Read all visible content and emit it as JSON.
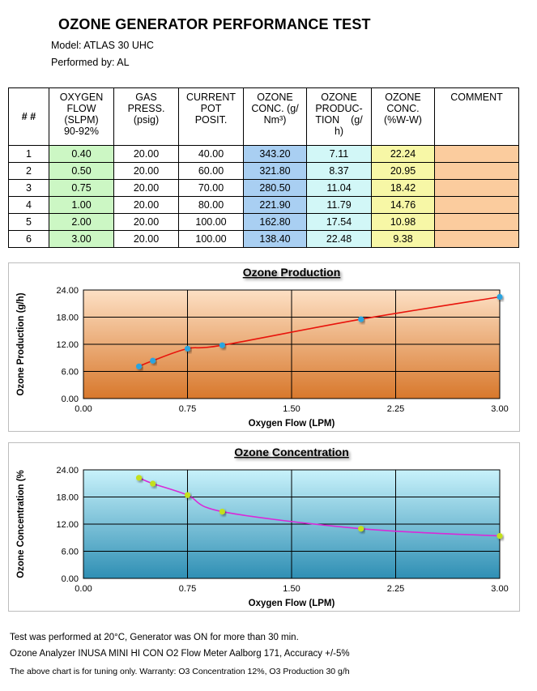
{
  "header": {
    "title": "OZONE GENERATOR PERFORMANCE TEST",
    "model": "Model: ATLAS 30 UHC",
    "performed_by": "Performed by: AL"
  },
  "table": {
    "headers": [
      [
        "# #"
      ],
      [
        "OXYGEN",
        "FLOW",
        "(SLPM)",
        "90-92%"
      ],
      [
        "GAS",
        "PRESS.",
        "(psig)"
      ],
      [
        "CURRENT",
        "POT",
        "POSIT."
      ],
      [
        "OZONE",
        "CONC. (g/",
        "Nm³)"
      ],
      [
        "OZONE",
        "PRODUC-",
        "TION    (g/",
        "h)"
      ],
      [
        "OZONE",
        "CONC.",
        "(%W-W)"
      ],
      [
        "COMMENT"
      ]
    ],
    "rows": [
      [
        "1",
        "0.40",
        "20.00",
        "40.00",
        "343.20",
        "7.11",
        "22.24",
        ""
      ],
      [
        "2",
        "0.50",
        "20.00",
        "60.00",
        "321.80",
        "8.37",
        "20.95",
        ""
      ],
      [
        "3",
        "0.75",
        "20.00",
        "70.00",
        "280.50",
        "11.04",
        "18.42",
        ""
      ],
      [
        "4",
        "1.00",
        "20.00",
        "80.00",
        "221.90",
        "11.79",
        "14.76",
        ""
      ],
      [
        "5",
        "2.00",
        "20.00",
        "100.00",
        "162.80",
        "17.54",
        "10.98",
        ""
      ],
      [
        "6",
        "3.00",
        "20.00",
        "100.00",
        "138.40",
        "22.48",
        "9.38",
        ""
      ]
    ]
  },
  "chart_data": [
    {
      "type": "line",
      "title": "Ozone Production",
      "xlabel": "Oxygen Flow (LPM)",
      "ylabel": "Ozone Production (g/h)",
      "x": [
        0.4,
        0.5,
        0.75,
        1.0,
        2.0,
        3.0
      ],
      "y": [
        7.11,
        8.37,
        11.04,
        11.79,
        17.54,
        22.48
      ],
      "xlim": [
        0,
        3
      ],
      "ylim": [
        0,
        24
      ],
      "xticks": [
        "0.00",
        "0.75",
        "1.50",
        "2.25",
        "3.00"
      ],
      "yticks": [
        "0.00",
        "6.00",
        "12.00",
        "18.00",
        "24.00"
      ],
      "grid": true,
      "line_color": "#e8140c",
      "marker_color": "#2aa4e0",
      "bg_top": "#fde0c4",
      "bg_bottom": "#d8782c"
    },
    {
      "type": "line",
      "title": "Ozone Concentration",
      "xlabel": "Oxygen Flow (LPM)",
      "ylabel": "Ozone Concentration (%",
      "x": [
        0.4,
        0.5,
        0.75,
        1.0,
        2.0,
        3.0
      ],
      "y": [
        22.24,
        20.95,
        18.42,
        14.76,
        10.98,
        9.38
      ],
      "xlim": [
        0,
        3
      ],
      "ylim": [
        0,
        24
      ],
      "xticks": [
        "0.00",
        "0.75",
        "1.50",
        "2.25",
        "3.00"
      ],
      "yticks": [
        "0.00",
        "6.00",
        "12.00",
        "18.00",
        "24.00"
      ],
      "grid": true,
      "line_color": "#d82ad8",
      "marker_color": "#c4e01c",
      "bg_top": "#c8f2fb",
      "bg_bottom": "#2f8fb4"
    }
  ],
  "footer": {
    "line1": "Test was performed at 20°C, Generator was ON for more than 30 min.",
    "line2": "Ozone Analyzer INUSA MINI HI CON O2 Flow Meter Aalborg 171, Accuracy +/-5%",
    "line3": "The above chart is for tuning only. Warranty: O3 Concentration 12%, O3 Production 30 g/h"
  }
}
